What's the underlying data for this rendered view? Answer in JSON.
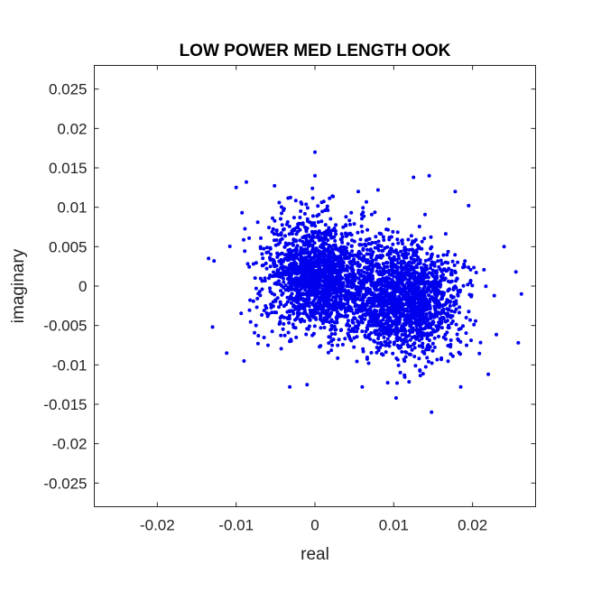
{
  "chart_data": {
    "type": "scatter",
    "title": "LOW POWER MED LENGTH OOK",
    "xlabel": "real",
    "ylabel": "imaginary",
    "xlim": [
      -0.028,
      0.028
    ],
    "ylim": [
      -0.028,
      0.028
    ],
    "x_ticks": [
      -0.02,
      -0.01,
      0,
      0.01,
      0.02
    ],
    "x_tick_labels": [
      "-0.02",
      "-0.01",
      "0",
      "0.01",
      "0.02"
    ],
    "y_ticks": [
      0.025,
      0.02,
      0.015,
      0.01,
      0.005,
      0,
      -0.005,
      -0.01,
      -0.015,
      -0.02,
      -0.025
    ],
    "y_tick_labels": [
      "0.025",
      "0.02",
      "0.015",
      "0.01",
      "0.005",
      "0",
      "-0.005",
      "-0.01",
      "-0.015",
      "-0.02",
      "-0.025"
    ],
    "grid": false,
    "marker_color": "#0000ee",
    "series": [
      {
        "clusters": [
          {
            "center": [
              0.0005,
              0.0012
            ],
            "std": [
              0.0036,
              0.0036
            ],
            "count": 1700
          },
          {
            "center": [
              0.0115,
              -0.0018
            ],
            "std": [
              0.0036,
              0.0034
            ],
            "count": 1700
          }
        ],
        "outliers": [
          [
            0.0,
            0.017
          ],
          [
            0.0,
            0.014
          ],
          [
            0.0145,
            0.014
          ],
          [
            0.0125,
            0.0138
          ],
          [
            -0.0135,
            0.0035
          ],
          [
            -0.0128,
            0.0032
          ],
          [
            -0.013,
            -0.0052
          ],
          [
            -0.0087,
            0.0132
          ],
          [
            -0.01,
            0.0125
          ],
          [
            0.0262,
            -0.001
          ],
          [
            0.0258,
            -0.0072
          ],
          [
            0.0255,
            0.0018
          ],
          [
            0.0148,
            -0.016
          ],
          [
            0.0103,
            -0.0142
          ],
          [
            -0.0032,
            -0.0128
          ],
          [
            -0.001,
            -0.0125
          ],
          [
            0.022,
            -0.0112
          ],
          [
            0.024,
            0.005
          ],
          [
            0.0055,
            0.012
          ],
          [
            0.008,
            0.0122
          ],
          [
            -0.0112,
            -0.0085
          ],
          [
            0.0185,
            -0.0128
          ],
          [
            0.0195,
            0.0102
          ],
          [
            -0.009,
            -0.0095
          ],
          [
            0.006,
            -0.0128
          ],
          [
            0.0178,
            0.012
          ]
        ]
      }
    ]
  }
}
